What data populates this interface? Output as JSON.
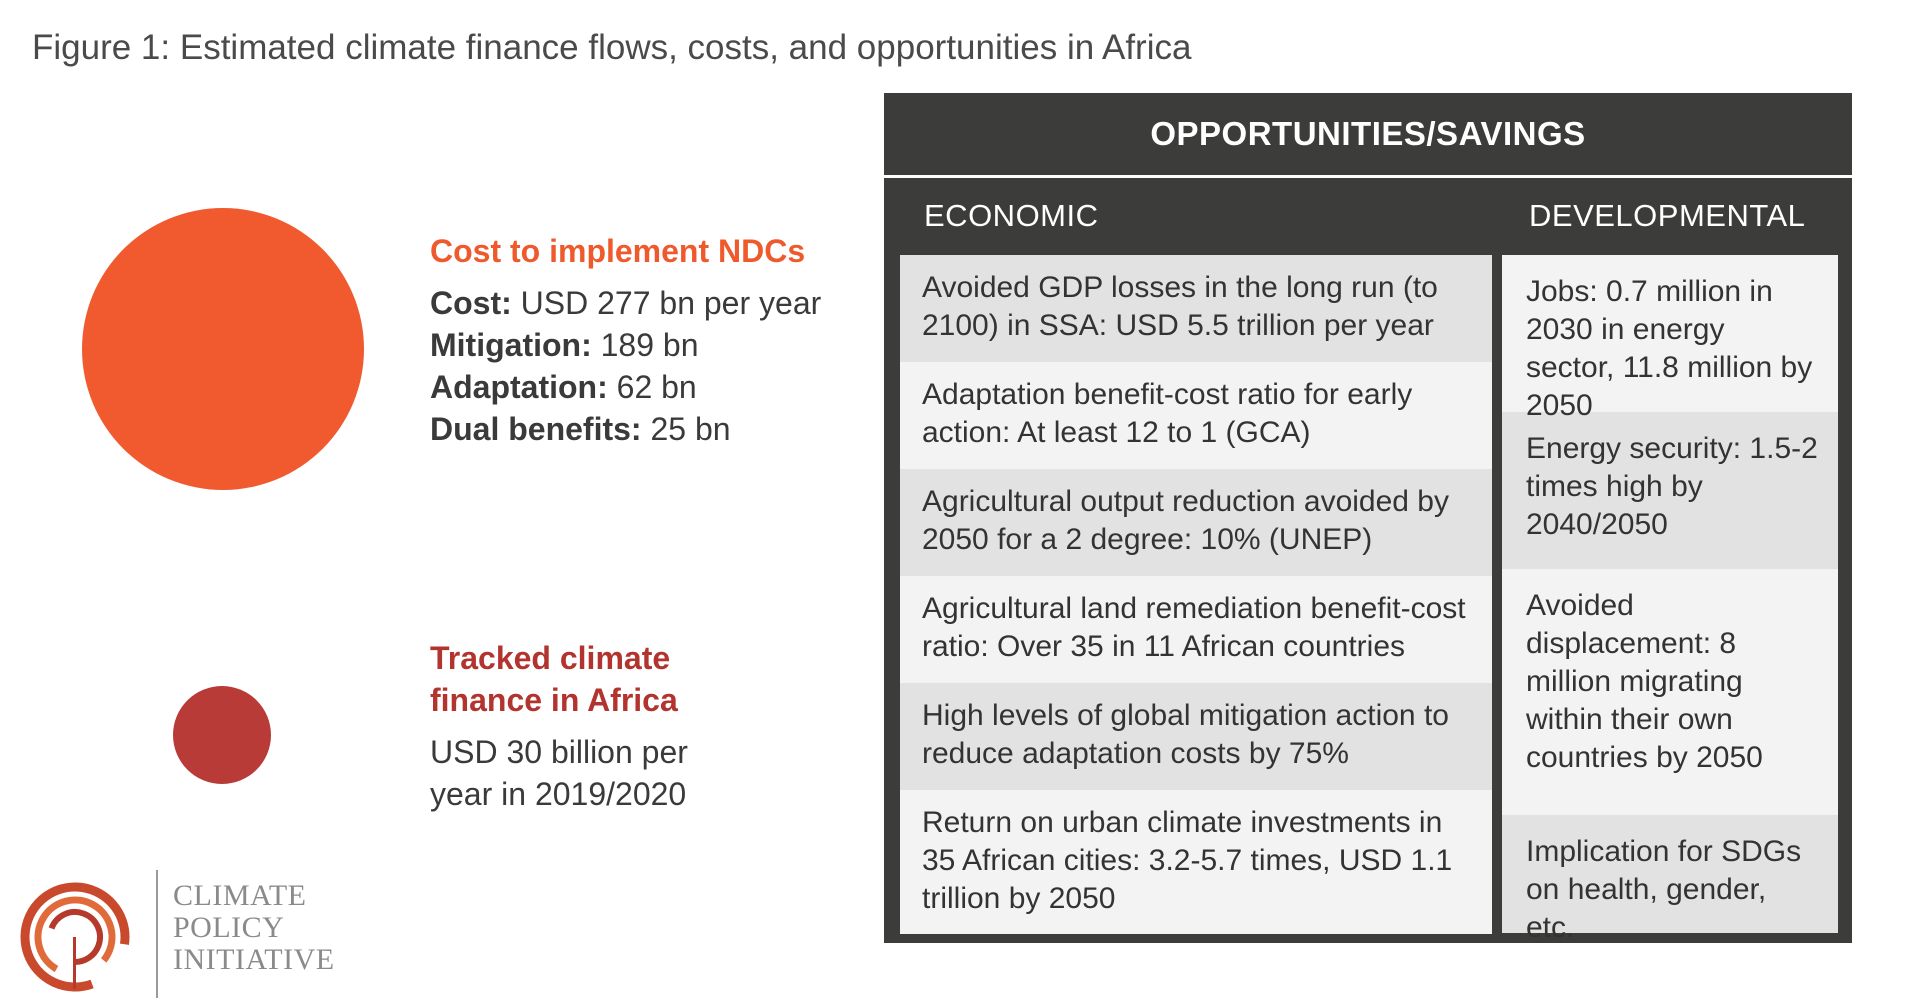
{
  "figure_title": "Figure 1: Estimated climate finance flows, costs, and opportunities in Africa",
  "colors": {
    "cost_circle": "#f15a2f",
    "tracked_circle": "#b83b37",
    "panel_bg": "#3c3d3a"
  },
  "ndc": {
    "heading": "Cost to implement NDCs",
    "lines": [
      {
        "label": "Cost:",
        "value": " USD 277 bn per year"
      },
      {
        "label": "Mitigation:",
        "value": " 189 bn"
      },
      {
        "label": "Adaptation:",
        "value": " 62 bn"
      },
      {
        "label": "Dual benefits:",
        "value": " 25 bn"
      }
    ]
  },
  "tracked": {
    "heading_line1": "Tracked climate",
    "heading_line2": "finance in Africa",
    "text_line1": "USD 30 billion per",
    "text_line2": "year in 2019/2020"
  },
  "logo": {
    "line1": "CLIMATE",
    "line2": "POLICY",
    "line3": "INITIATIVE"
  },
  "panel": {
    "title": "OPPORTUNITIES/SAVINGS",
    "economic_header": "ECONOMIC",
    "developmental_header": "DEVELOPMENTAL",
    "economic": [
      "Avoided GDP losses in the long run (to 2100) in SSA: USD 5.5 trillion per year",
      "Adaptation benefit-cost ratio for early action: At least 12 to 1 (GCA)",
      "Agricultural output reduction avoided by 2050 for a 2 degree: 10% (UNEP)",
      "Agricultural land remediation benefit-cost ratio: Over 35 in 11 African countries",
      "High levels of global mitigation action to reduce adaptation costs by 75%",
      "Return on urban climate investments in 35 African cities: 3.2-5.7 times, USD 1.1 trillion by 2050"
    ],
    "developmental": [
      "Jobs: 0.7 million in 2030 in energy sector, 11.8 million by 2050",
      "Energy security: 1.5-2 times high by 2040/2050",
      "Avoided displacement: 8 million migrating within their own countries by 2050",
      "Implication for SDGs on health, gender, etc."
    ]
  }
}
